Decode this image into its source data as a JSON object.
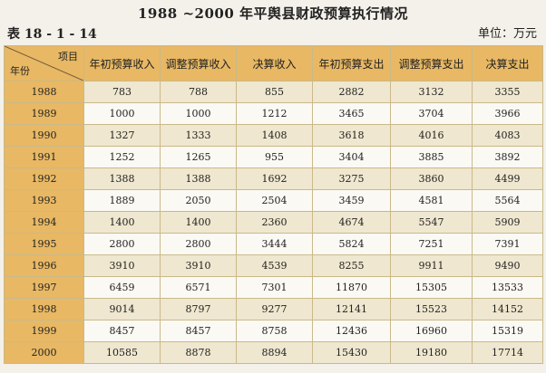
{
  "title": "1988 ~2000 年平舆县财政预算执行情况",
  "table_id": "表 18 - 1 - 14",
  "unit": "单位：万元",
  "corner": {
    "item": "项目",
    "year": "年份"
  },
  "columns": [
    "年初预算收入",
    "调整预算收入",
    "决算收入",
    "年初预算支出",
    "调整预算支出",
    "决算支出"
  ],
  "rows": [
    {
      "year": "1988",
      "cells": [
        "783",
        "788",
        "855",
        "2882",
        "3132",
        "3355"
      ]
    },
    {
      "year": "1989",
      "cells": [
        "1000",
        "1000",
        "1212",
        "3465",
        "3704",
        "3966"
      ]
    },
    {
      "year": "1990",
      "cells": [
        "1327",
        "1333",
        "1408",
        "3618",
        "4016",
        "4083"
      ]
    },
    {
      "year": "1991",
      "cells": [
        "1252",
        "1265",
        "955",
        "3404",
        "3885",
        "3892"
      ]
    },
    {
      "year": "1992",
      "cells": [
        "1388",
        "1388",
        "1692",
        "3275",
        "3860",
        "4499"
      ]
    },
    {
      "year": "1993",
      "cells": [
        "1889",
        "2050",
        "2504",
        "3459",
        "4581",
        "5564"
      ]
    },
    {
      "year": "1994",
      "cells": [
        "1400",
        "1400",
        "2360",
        "4674",
        "5547",
        "5909"
      ]
    },
    {
      "year": "1995",
      "cells": [
        "2800",
        "2800",
        "3444",
        "5824",
        "7251",
        "7391"
      ]
    },
    {
      "year": "1996",
      "cells": [
        "3910",
        "3910",
        "4539",
        "8255",
        "9911",
        "9490"
      ]
    },
    {
      "year": "1997",
      "cells": [
        "6459",
        "6571",
        "7301",
        "11870",
        "15305",
        "13533"
      ]
    },
    {
      "year": "1998",
      "cells": [
        "9014",
        "8797",
        "9277",
        "12141",
        "15523",
        "14152"
      ]
    },
    {
      "year": "1999",
      "cells": [
        "8457",
        "8457",
        "8758",
        "12436",
        "16960",
        "15319"
      ]
    },
    {
      "year": "2000",
      "cells": [
        "10585",
        "8878",
        "8894",
        "15430",
        "19180",
        "17714"
      ]
    }
  ]
}
